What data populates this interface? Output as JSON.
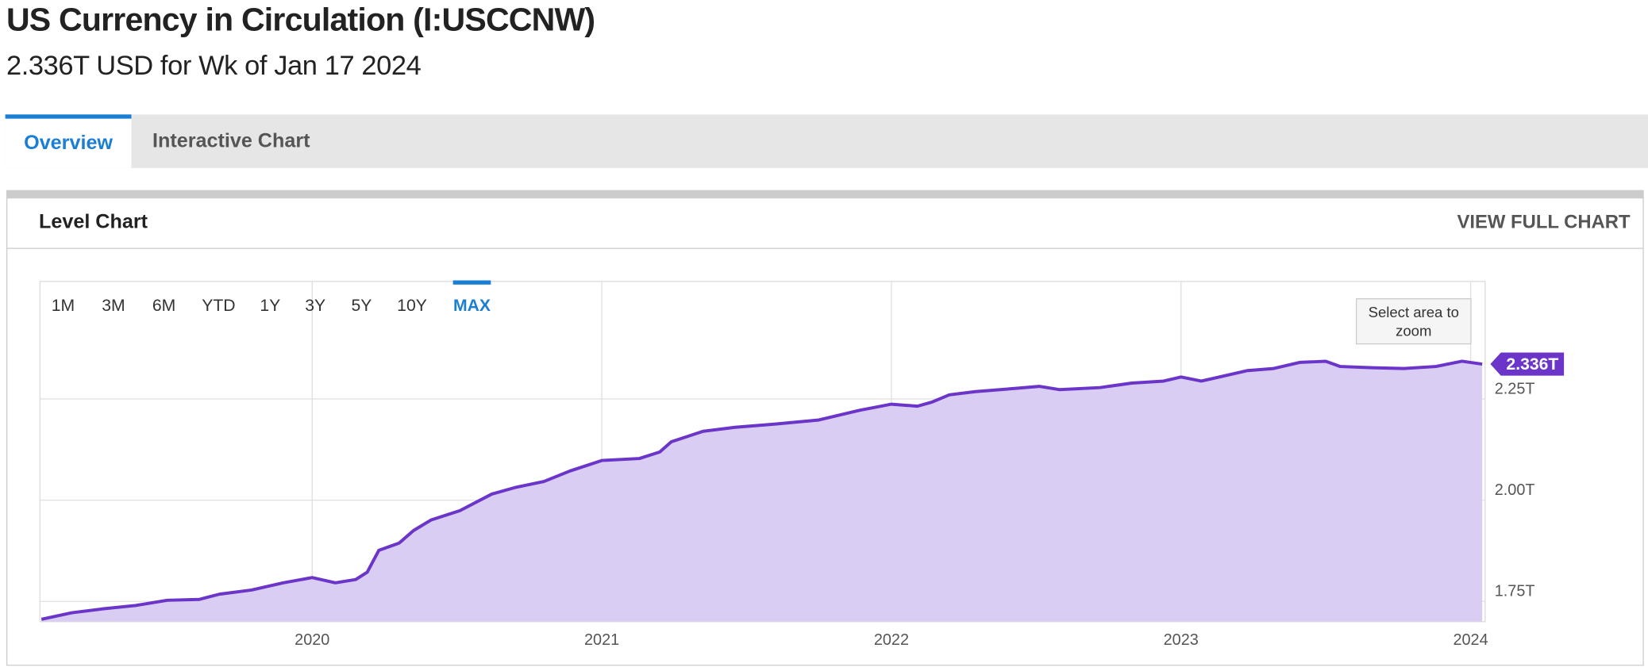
{
  "header": {
    "title": "US Currency in Circulation (I:USCCNW)",
    "subtitle": "2.336T USD for Wk of Jan 17 2024"
  },
  "tabs": [
    "Overview",
    "Interactive Chart"
  ],
  "panel": {
    "title": "Level Chart",
    "link": "VIEW FULL CHART"
  },
  "range_buttons": [
    "1M",
    "3M",
    "6M",
    "YTD",
    "1Y",
    "3Y",
    "5Y",
    "10Y",
    "MAX"
  ],
  "zoom_hint": "Select area to zoom",
  "chart_data": {
    "type": "area",
    "color": "#6a35c8",
    "fill": "#d9cdf3",
    "grid": true,
    "x": [
      2019.065,
      2019.17,
      2019.28,
      2019.39,
      2019.5,
      2019.61,
      2019.68,
      2019.79,
      2019.9,
      2020.0,
      2020.08,
      2020.15,
      2020.19,
      2020.23,
      2020.3,
      2020.35,
      2020.41,
      2020.51,
      2020.62,
      2020.7,
      2020.8,
      2020.89,
      2021.0,
      2021.13,
      2021.2,
      2021.24,
      2021.35,
      2021.46,
      2021.6,
      2021.75,
      2021.89,
      2022.0,
      2022.09,
      2022.14,
      2022.2,
      2022.29,
      2022.43,
      2022.51,
      2022.58,
      2022.72,
      2022.83,
      2022.94,
      2023.0,
      2023.07,
      2023.23,
      2023.32,
      2023.41,
      2023.5,
      2023.55,
      2023.66,
      2023.77,
      2023.88,
      2023.97,
      2024.04
    ],
    "values": [
      1.706,
      1.722,
      1.732,
      1.74,
      1.753,
      1.755,
      1.768,
      1.778,
      1.796,
      1.809,
      1.796,
      1.804,
      1.822,
      1.876,
      1.894,
      1.925,
      1.951,
      1.974,
      2.015,
      2.031,
      2.046,
      2.072,
      2.098,
      2.103,
      2.119,
      2.144,
      2.17,
      2.18,
      2.188,
      2.198,
      2.222,
      2.237,
      2.232,
      2.242,
      2.26,
      2.268,
      2.276,
      2.281,
      2.273,
      2.278,
      2.289,
      2.294,
      2.304,
      2.294,
      2.32,
      2.325,
      2.34,
      2.343,
      2.33,
      2.327,
      2.325,
      2.33,
      2.343,
      2.336
    ],
    "value_labels": [
      null,
      null,
      null,
      null,
      null,
      null,
      null,
      null,
      null,
      null,
      null,
      null,
      null,
      null,
      null,
      null,
      null,
      null,
      null,
      null,
      null,
      null,
      null,
      null,
      null,
      null,
      null,
      null,
      null,
      null,
      null,
      null,
      null,
      null,
      null,
      null,
      null,
      null,
      null,
      null,
      null,
      null,
      null,
      null,
      null,
      null,
      null,
      null,
      null,
      null,
      null,
      null,
      null,
      "2.336T"
    ],
    "xlim": [
      2019.06,
      2024.05
    ],
    "xticks": [
      2020,
      2021,
      2022,
      2023,
      2024
    ],
    "ylim": [
      1.7,
      2.54
    ],
    "yticks": [
      {
        "value": 1.75,
        "label": "1.75T"
      },
      {
        "value": 2.0,
        "label": "2.00T"
      },
      {
        "value": 2.25,
        "label": "2.25T"
      }
    ]
  }
}
